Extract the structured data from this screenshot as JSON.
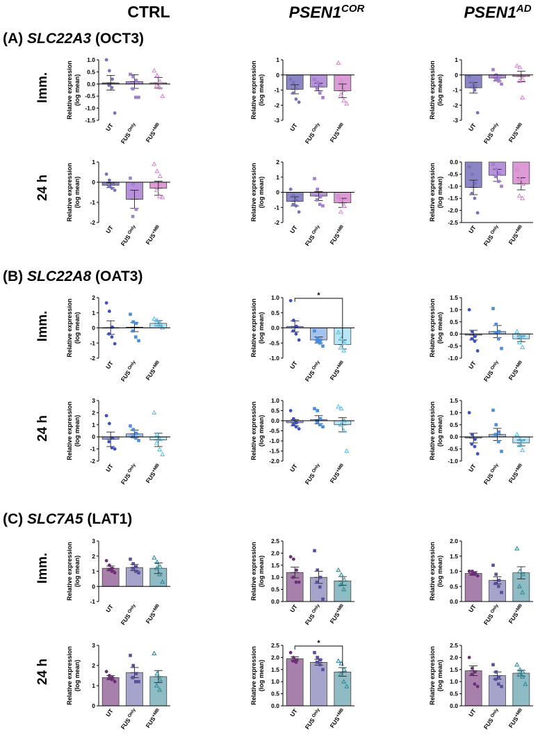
{
  "columns": {
    "ctrl": "CTRL",
    "cor": {
      "base": "PSEN1",
      "sup": "COR"
    },
    "ad": {
      "base": "PSEN1",
      "sup": "AD"
    }
  },
  "sections": [
    {
      "letter": "(A)",
      "gene": "SLC22A3",
      "protein": "(OCT3)"
    },
    {
      "letter": "(B)",
      "gene": "SLC22A8",
      "protein": "(OAT3)"
    },
    {
      "letter": "(C)",
      "gene": "SLC7A5",
      "protein": "(LAT1)"
    }
  ],
  "row_labels": {
    "imm": "Imm.",
    "h24": "24 h"
  },
  "y_axis_label": [
    "Relative expression",
    "(log mean)"
  ],
  "groups": [
    {
      "label": "UT",
      "sup": ""
    },
    {
      "label": "FUS",
      "sup": "Only"
    },
    {
      "label": "FUS",
      "sup": "+MB"
    }
  ],
  "significance_marker": "*",
  "colors": {
    "A": [
      "#8a86c6",
      "#b692d8",
      "#dc9ad6"
    ],
    "A_pts": [
      "#7872b8",
      "#a47ed0",
      "#d68ad0"
    ],
    "B": [
      "#a2a9df",
      "#a5c2ed",
      "#b8e6f6"
    ],
    "B_pts": [
      "#3d4fc2",
      "#4a8ee0",
      "#5cc2e6"
    ],
    "C": [
      "#a780ab",
      "#a5a4cb",
      "#8fbcc4"
    ],
    "C_pts": [
      "#6c2f78",
      "#5a4f9e",
      "#2f8c9c"
    ]
  },
  "chart_data": [
    {
      "id": "A-ctrl-imm",
      "type": "bar",
      "categories": [
        "UT",
        "FUS Only",
        "FUS +MB"
      ],
      "ylim": [
        -1.5,
        1.0
      ],
      "yticks": [
        1.0,
        0.5,
        0.0,
        -0.5,
        -1.0,
        -1.5
      ],
      "yprec": 1,
      "values": [
        0.05,
        0.1,
        0.05
      ],
      "sem": [
        0.3,
        0.28,
        0.22
      ],
      "points": [
        [
          1.0,
          0.55,
          0.2,
          -0.05,
          -0.15,
          -1.2
        ],
        [
          0.4,
          0.3,
          0.15,
          -0.2,
          -0.55,
          -0.55
        ],
        [
          0.55,
          0.35,
          0.1,
          -0.05,
          -0.15,
          -0.5
        ]
      ]
    },
    {
      "id": "A-cor-imm",
      "type": "bar",
      "categories": [
        "UT",
        "FUS Only",
        "FUS +MB"
      ],
      "ylim": [
        -3,
        1
      ],
      "yticks": [
        1,
        0,
        -1,
        -2,
        -3
      ],
      "yprec": 0,
      "values": [
        -0.95,
        -0.8,
        -1.05
      ],
      "sem": [
        0.3,
        0.25,
        0.45
      ],
      "points": [
        [
          -0.3,
          -0.5,
          -0.9,
          -1.2,
          -1.6,
          -1.8
        ],
        [
          -0.3,
          -0.5,
          -0.7,
          -0.9,
          -1.2,
          -1.5
        ],
        [
          0.8,
          -0.4,
          -1.0,
          -1.3,
          -1.7,
          -1.9
        ]
      ]
    },
    {
      "id": "A-ad-imm",
      "type": "bar",
      "categories": [
        "UT",
        "FUS Only",
        "FUS +MB"
      ],
      "ylim": [
        -3,
        1
      ],
      "yticks": [
        1,
        0,
        -1,
        -2,
        -3
      ],
      "yprec": 0,
      "values": [
        -0.85,
        -0.2,
        -0.1
      ],
      "sem": [
        0.35,
        0.2,
        0.35
      ],
      "points": [
        [
          -0.1,
          -0.5,
          -0.7,
          -0.8,
          -1.0,
          -2.5
        ],
        [
          0.35,
          0.0,
          -0.2,
          -0.3,
          -0.4,
          -0.6
        ],
        [
          0.6,
          0.5,
          -0.3,
          -0.4,
          -1.5
        ]
      ]
    },
    {
      "id": "A-ctrl-24",
      "type": "bar",
      "categories": [
        "UT",
        "FUS Only",
        "FUS +MB"
      ],
      "ylim": [
        -2,
        1
      ],
      "yticks": [
        1,
        0,
        -1,
        -2
      ],
      "yprec": 0,
      "values": [
        -0.15,
        -0.85,
        -0.3
      ],
      "sem": [
        0.12,
        0.45,
        0.35
      ],
      "points": [
        [
          0.4,
          0.1,
          -0.1,
          -0.2,
          -0.3,
          -0.4
        ],
        [
          0.2,
          -0.1,
          -1.35,
          -1.7
        ],
        [
          0.9,
          0.55,
          0.3,
          -0.4,
          -0.7,
          -0.75
        ]
      ]
    },
    {
      "id": "A-cor-24",
      "type": "bar",
      "categories": [
        "UT",
        "FUS Only",
        "FUS +MB"
      ],
      "ylim": [
        -2,
        2
      ],
      "yticks": [
        2,
        1,
        0,
        -1,
        -2
      ],
      "yprec": 0,
      "values": [
        -0.6,
        -0.25,
        -0.7
      ],
      "sem": [
        0.3,
        0.3,
        0.3
      ],
      "points": [
        [
          0.2,
          -0.2,
          -0.5,
          -0.8,
          -0.9,
          -1.3
        ],
        [
          0.9,
          0.2,
          -0.3,
          -0.5,
          -0.8,
          -0.9
        ],
        [
          -0.3,
          -0.5,
          -0.9,
          -1.3
        ]
      ]
    },
    {
      "id": "A-ad-24",
      "type": "bar",
      "categories": [
        "UT",
        "FUS Only",
        "FUS +MB"
      ],
      "ylim": [
        -2.5,
        0.0
      ],
      "yticks": [
        0.0,
        -0.5,
        -1.0,
        -1.5,
        -2.0,
        -2.5
      ],
      "yprec": 1,
      "values": [
        -1.05,
        -0.55,
        -0.9
      ],
      "sem": [
        0.3,
        0.25,
        0.25
      ],
      "points": [
        [
          -0.2,
          -0.5,
          -0.9,
          -1.3,
          -1.5,
          -2.1
        ],
        [
          -0.1,
          -0.3,
          -0.5,
          -0.6,
          -0.8,
          -1.0
        ],
        [
          -0.3,
          -0.7,
          -0.9,
          -1.4,
          -1.5
        ]
      ]
    },
    {
      "id": "B-ctrl-imm",
      "type": "bar",
      "categories": [
        "UT",
        "FUS Only",
        "FUS +MB"
      ],
      "ylim": [
        -2,
        2
      ],
      "yticks": [
        2,
        1,
        0,
        -1,
        -2
      ],
      "yprec": 0,
      "values": [
        0.02,
        0.05,
        0.3
      ],
      "sem": [
        0.45,
        0.3,
        0.18
      ],
      "points": [
        [
          1.65,
          1.1,
          0.05,
          -0.4,
          -0.6,
          -1.05
        ],
        [
          0.9,
          0.4,
          0.3,
          -0.2,
          -0.6,
          -0.85
        ],
        [
          0.6,
          0.5,
          0.3,
          0.2,
          0.1,
          0.0
        ]
      ]
    },
    {
      "id": "B-cor-imm",
      "type": "bar",
      "categories": [
        "UT",
        "FUS Only",
        "FUS +MB"
      ],
      "ylim": [
        -1.0,
        1.0
      ],
      "yticks": [
        1.0,
        0.5,
        0.0,
        -0.5,
        -1.0
      ],
      "yprec": 1,
      "values": [
        0.05,
        -0.4,
        -0.55
      ],
      "sem": [
        0.18,
        0.1,
        0.15
      ],
      "points": [
        [
          0.9,
          0.25,
          0.05,
          -0.1,
          -0.2,
          -0.4
        ],
        [
          -0.1,
          -0.35,
          -0.4,
          -0.45,
          -0.5,
          -0.6
        ],
        [
          -0.15,
          -0.35,
          -0.5,
          -0.65,
          -0.75
        ]
      ],
      "significance": {
        "from": 0,
        "to": 2,
        "label": "*"
      }
    },
    {
      "id": "B-ad-imm",
      "type": "bar",
      "categories": [
        "UT",
        "FUS Only",
        "FUS +MB"
      ],
      "ylim": [
        -1.0,
        1.5
      ],
      "yticks": [
        1.5,
        1.0,
        0.5,
        0.0,
        -0.5,
        -1.0
      ],
      "yprec": 1,
      "values": [
        -0.05,
        0.1,
        -0.2
      ],
      "sem": [
        0.2,
        0.25,
        0.12
      ],
      "points": [
        [
          1.0,
          0.1,
          -0.1,
          -0.2,
          -0.3,
          -0.7
        ],
        [
          1.05,
          0.4,
          0.1,
          0.05,
          -0.2,
          -0.6
        ],
        [
          0.1,
          -0.1,
          -0.15,
          -0.35,
          -0.55
        ]
      ]
    },
    {
      "id": "B-ctrl-24",
      "type": "bar",
      "categories": [
        "UT",
        "FUS Only",
        "FUS +MB"
      ],
      "ylim": [
        -2,
        3
      ],
      "yticks": [
        3,
        2,
        1,
        0,
        -1,
        -2
      ],
      "yprec": 0,
      "values": [
        -0.2,
        0.25,
        -0.25
      ],
      "sem": [
        0.6,
        0.3,
        0.55
      ],
      "points": [
        [
          1.75,
          1.1,
          -0.1,
          -0.4,
          -0.9,
          -1.0
        ],
        [
          0.9,
          0.6,
          0.3,
          0.0,
          -0.1,
          -0.3
        ],
        [
          2.0,
          0.2,
          -0.2,
          -0.5,
          -1.05,
          -1.45
        ]
      ]
    },
    {
      "id": "B-cor-24",
      "type": "bar",
      "categories": [
        "UT",
        "FUS Only",
        "FUS +MB"
      ],
      "ylim": [
        -2.0,
        1.0
      ],
      "yticks": [
        1.0,
        0.5,
        0.0,
        -0.5,
        -1.0,
        -1.5,
        -2.0
      ],
      "yprec": 1,
      "values": [
        -0.1,
        0.05,
        -0.2
      ],
      "sem": [
        0.15,
        0.2,
        0.35
      ],
      "points": [
        [
          0.5,
          0.1,
          -0.1,
          -0.2,
          -0.3,
          -0.4
        ],
        [
          0.6,
          0.5,
          0.1,
          -0.05,
          -0.2,
          -0.3
        ],
        [
          0.7,
          0.6,
          0.0,
          -0.2,
          -0.5,
          -1.5
        ]
      ]
    },
    {
      "id": "B-ad-24",
      "type": "bar",
      "categories": [
        "UT",
        "FUS Only",
        "FUS +MB"
      ],
      "ylim": [
        -1.0,
        1.5
      ],
      "yticks": [
        1.5,
        1.0,
        0.5,
        0.0,
        -0.5,
        -1.0
      ],
      "yprec": 1,
      "values": [
        -0.05,
        0.1,
        -0.25
      ],
      "sem": [
        0.2,
        0.25,
        0.12
      ],
      "points": [
        [
          1.0,
          0.1,
          -0.1,
          -0.3,
          -0.4,
          -0.7
        ],
        [
          1.1,
          0.5,
          0.2,
          0.1,
          -0.2,
          -0.6
        ],
        [
          0.1,
          -0.1,
          -0.2,
          -0.35,
          -0.55
        ]
      ]
    },
    {
      "id": "C-ctrl-imm",
      "type": "bar",
      "categories": [
        "UT",
        "FUS Only",
        "FUS +MB"
      ],
      "ylim": [
        -1,
        3
      ],
      "yticks": [
        3,
        2,
        1,
        0,
        -1
      ],
      "yprec": 0,
      "values": [
        1.2,
        1.25,
        1.2
      ],
      "sem": [
        0.15,
        0.2,
        0.35
      ],
      "points": [
        [
          1.7,
          1.4,
          1.2,
          1.1,
          1.0,
          0.9
        ],
        [
          1.8,
          1.5,
          1.3,
          1.2,
          1.0,
          0.9
        ],
        [
          1.9,
          1.6,
          1.3,
          1.2,
          0.8,
          0.3
        ]
      ]
    },
    {
      "id": "C-cor-imm",
      "type": "bar",
      "categories": [
        "UT",
        "FUS Only",
        "FUS +MB"
      ],
      "ylim": [
        0.0,
        2.5
      ],
      "yticks": [
        2.5,
        2.0,
        1.5,
        1.0,
        0.5,
        0.0
      ],
      "yprec": 1,
      "values": [
        1.2,
        1.0,
        0.85
      ],
      "sem": [
        0.22,
        0.25,
        0.18
      ],
      "points": [
        [
          1.85,
          1.75,
          1.3,
          1.0,
          0.8,
          0.8
        ],
        [
          2.1,
          1.3,
          1.0,
          0.8,
          0.6,
          0.1
        ],
        [
          1.3,
          1.1,
          0.9,
          0.7,
          0.5
        ]
      ]
    },
    {
      "id": "C-ad-imm",
      "type": "bar",
      "categories": [
        "UT",
        "FUS Only",
        "FUS +MB"
      ],
      "ylim": [
        0.0,
        2.0
      ],
      "yticks": [
        2.0,
        1.5,
        1.0,
        0.5,
        0.0
      ],
      "yprec": 1,
      "values": [
        0.93,
        0.7,
        0.95
      ],
      "sem": [
        0.06,
        0.12,
        0.2
      ],
      "points": [
        [
          1.0,
          1.0,
          0.95,
          0.9,
          0.9,
          0.85
        ],
        [
          1.2,
          0.9,
          0.7,
          0.6,
          0.5,
          0.3
        ],
        [
          1.75,
          1.0,
          0.9,
          0.5,
          0.3
        ]
      ]
    },
    {
      "id": "C-ctrl-24",
      "type": "bar",
      "categories": [
        "UT",
        "FUS Only",
        "FUS +MB"
      ],
      "ylim": [
        0,
        3
      ],
      "yticks": [
        3,
        2,
        1,
        0
      ],
      "yprec": 0,
      "values": [
        1.4,
        1.65,
        1.45
      ],
      "sem": [
        0.1,
        0.25,
        0.3
      ],
      "points": [
        [
          1.7,
          1.5,
          1.4,
          1.35,
          1.3,
          1.2
        ],
        [
          2.5,
          2.0,
          1.6,
          1.4,
          1.2,
          1.2
        ],
        [
          2.6,
          1.6,
          1.3,
          1.0,
          0.8
        ]
      ]
    },
    {
      "id": "C-cor-24",
      "type": "bar",
      "categories": [
        "UT",
        "FUS Only",
        "FUS +MB"
      ],
      "ylim": [
        0.0,
        2.5
      ],
      "yticks": [
        2.5,
        2.0,
        1.5,
        1.0,
        0.5,
        0.0
      ],
      "yprec": 1,
      "values": [
        1.95,
        1.8,
        1.4
      ],
      "sem": [
        0.08,
        0.12,
        0.18
      ],
      "points": [
        [
          2.2,
          2.0,
          1.9,
          1.85,
          1.8
        ],
        [
          2.2,
          2.0,
          1.9,
          1.8,
          1.7,
          1.5
        ],
        [
          1.85,
          1.75,
          1.5,
          1.3,
          1.0,
          0.8
        ]
      ],
      "significance": {
        "from": 0,
        "to": 2,
        "label": "*"
      }
    },
    {
      "id": "C-ad-24",
      "type": "bar",
      "categories": [
        "UT",
        "FUS Only",
        "FUS +MB"
      ],
      "ylim": [
        0.0,
        2.5
      ],
      "yticks": [
        2.5,
        2.0,
        1.5,
        1.0,
        0.5,
        0.0
      ],
      "yprec": 1,
      "values": [
        1.45,
        1.25,
        1.35
      ],
      "sem": [
        0.2,
        0.15,
        0.12
      ],
      "points": [
        [
          2.0,
          1.55,
          1.4,
          1.3,
          0.9,
          0.8
        ],
        [
          1.7,
          1.4,
          1.2,
          1.1,
          0.9,
          0.8
        ],
        [
          1.7,
          1.5,
          1.4,
          1.3,
          1.2,
          0.9
        ]
      ]
    }
  ]
}
